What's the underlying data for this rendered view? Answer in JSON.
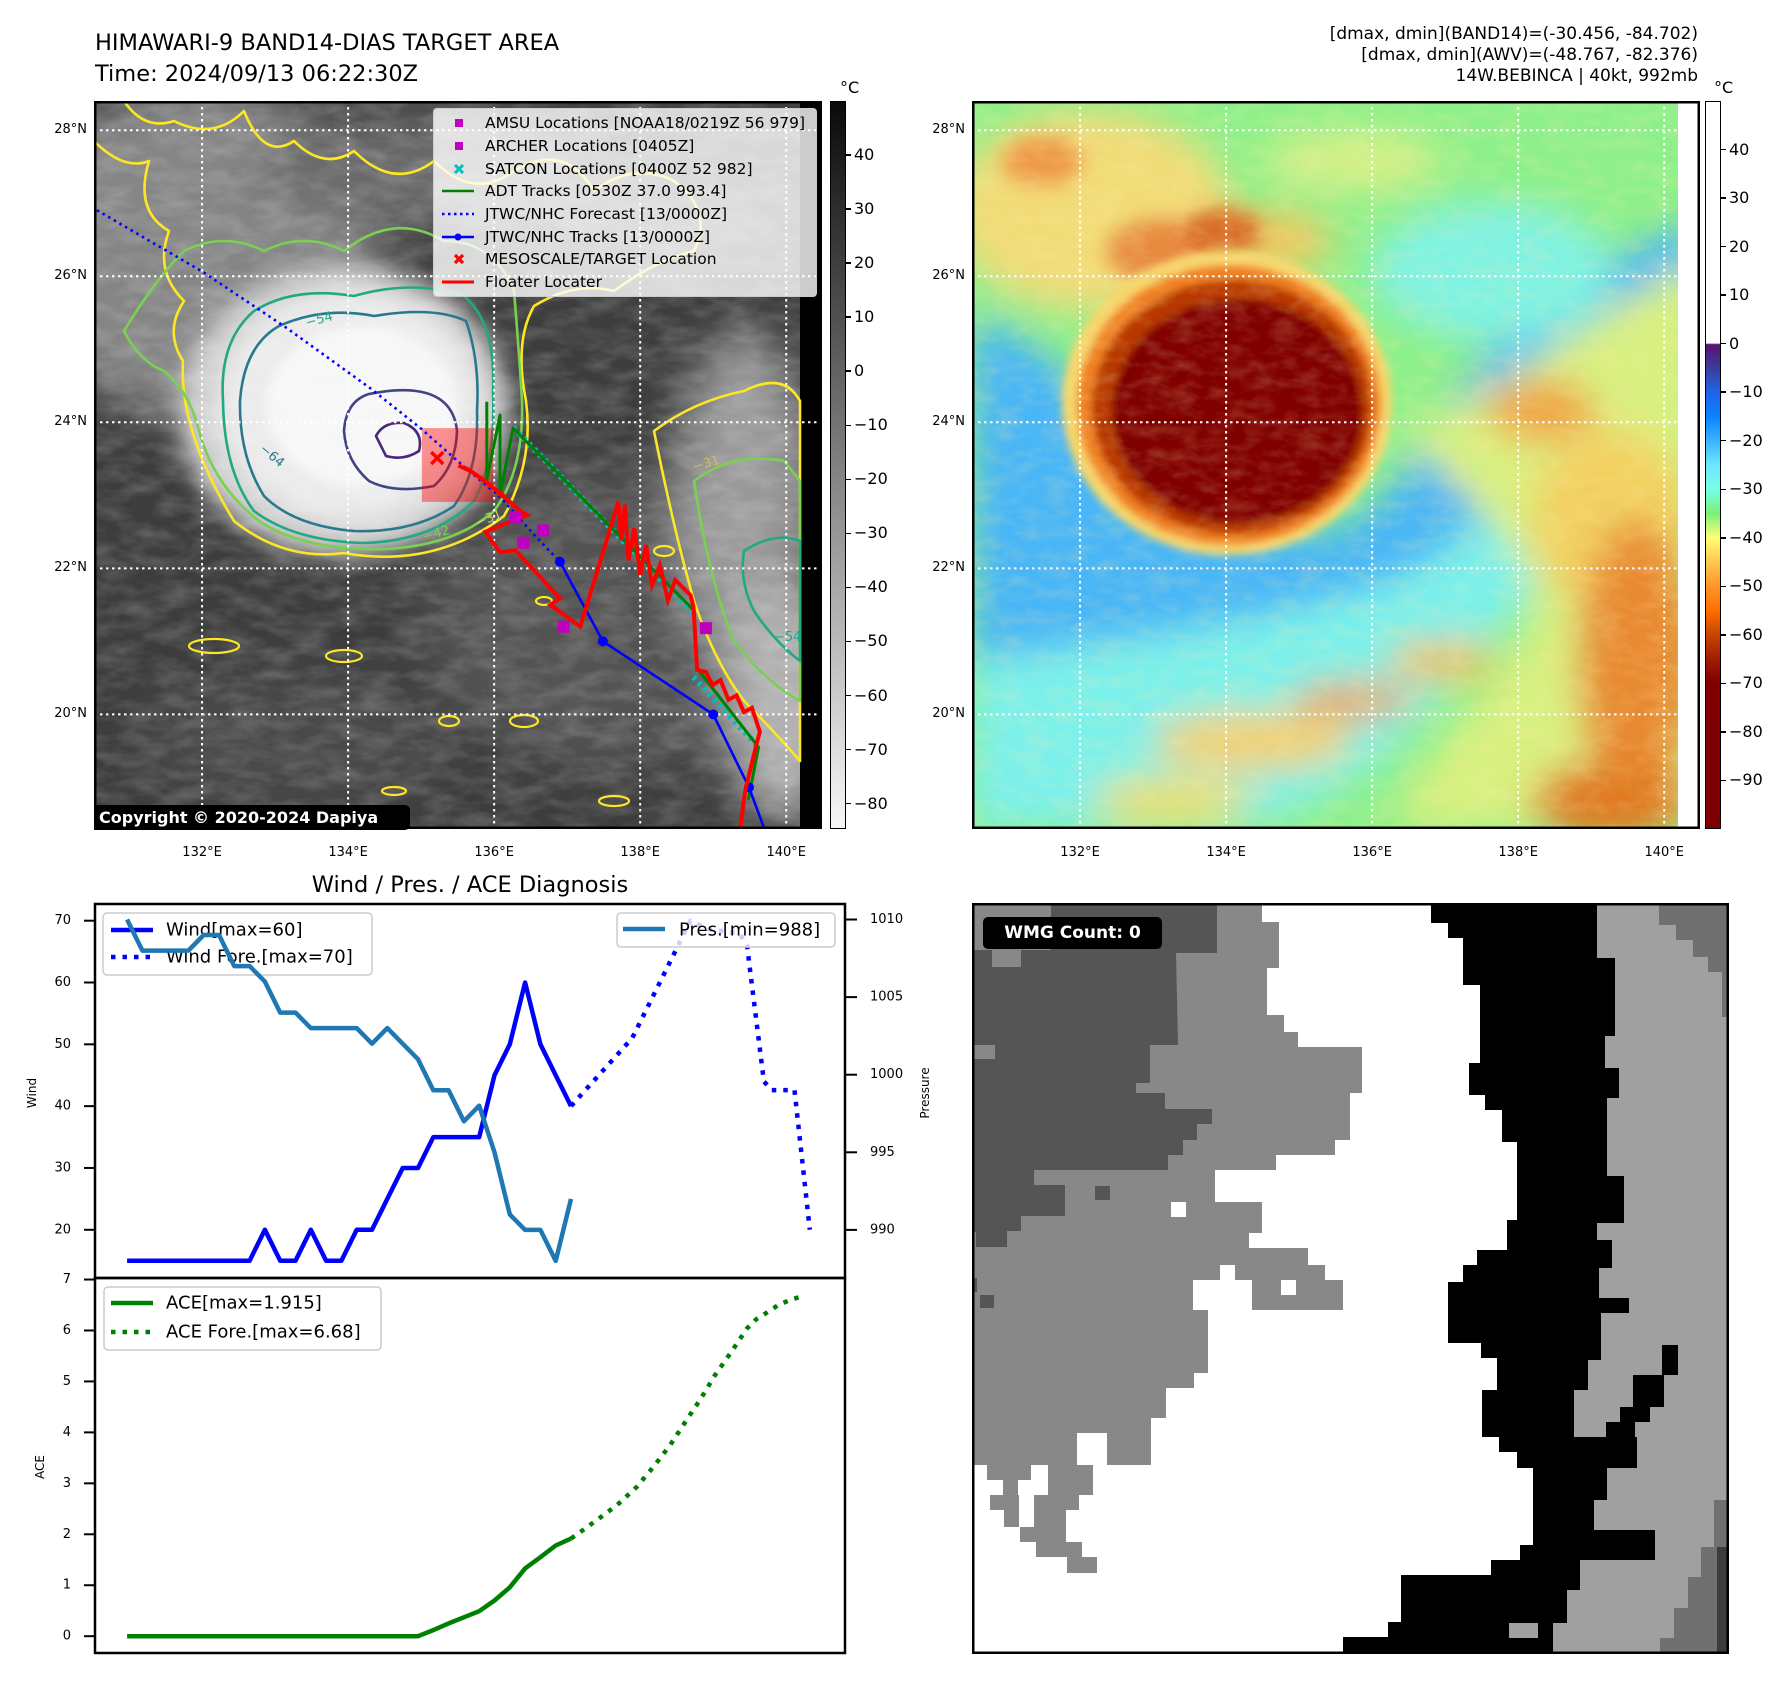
{
  "header": {
    "title": "HIMAWARI-9 BAND14-DIAS TARGET AREA",
    "time": "Time: 2024/09/13 06:22:30Z",
    "stats": [
      "[dmax, dmin](BAND14)=(-30.456, -84.702)",
      "[dmax, dmin](AWV)=(-48.767, -82.376)",
      "14W.BEBINCA | 40kt, 992mb"
    ]
  },
  "map_axes": {
    "lon_range": [
      130.52,
      140.49
    ],
    "lat_range": [
      18.43,
      28.4
    ],
    "lon_ticks": [
      {
        "value": 132,
        "label": "132°E"
      },
      {
        "value": 134,
        "label": "134°E"
      },
      {
        "value": 136,
        "label": "136°E"
      },
      {
        "value": 138,
        "label": "138°E"
      },
      {
        "value": 140,
        "label": "140°E"
      }
    ],
    "lat_ticks": [
      {
        "value": 28,
        "label": "28°N"
      },
      {
        "value": 26,
        "label": "26°N"
      },
      {
        "value": 24,
        "label": "24°N"
      },
      {
        "value": 22,
        "label": "22°N"
      },
      {
        "value": 20,
        "label": "20°N"
      }
    ]
  },
  "ir_map": {
    "colorbar": {
      "unit": "°C",
      "colormap": "gray_r",
      "range": [
        -84.7,
        50
      ],
      "ticks": [
        40,
        30,
        20,
        10,
        0,
        -10,
        -20,
        -30,
        -40,
        -50,
        -60,
        -70,
        -80
      ]
    },
    "legend": [
      {
        "label": "AMSU Locations [NOAA18/0219Z 56 979]",
        "marker": "square",
        "color": "#bf00bf"
      },
      {
        "label": "ARCHER Locations [0405Z]",
        "marker": "square",
        "color": "#bf00bf"
      },
      {
        "label": "SATCON Locations [0400Z 52 982]",
        "marker": "x",
        "color": "#00bfbf"
      },
      {
        "label": "ADT Tracks [0530Z 37.0 993.4]",
        "marker": "line",
        "color": "#008000"
      },
      {
        "label": "JTWC/NHC Forecast [13/0000Z]",
        "marker": "dotted-line",
        "color": "#0000ff"
      },
      {
        "label": "JTWC/NHC Tracks [13/0000Z]",
        "marker": "line-dot",
        "color": "#0000ff"
      },
      {
        "label": "MESOSCALE/TARGET Location",
        "marker": "x",
        "color": "#ff0000"
      },
      {
        "label": "Floater Locater",
        "marker": "line",
        "color": "#ff0000"
      }
    ],
    "contour_labels": [
      "−31",
      "−42",
      "−54",
      "−64"
    ],
    "contour_colors": [
      "#fde725",
      "#7ad151",
      "#22a884",
      "#2a788e",
      "#414487",
      "#482878"
    ],
    "overlays": {
      "jtwc_forecast": [
        [
          130.4,
          26.98
        ],
        [
          130.55,
          26.91
        ],
        [
          132.01,
          26.06
        ],
        [
          133.16,
          25.29
        ],
        [
          134.3,
          24.47
        ],
        [
          134.99,
          23.92
        ],
        [
          135.51,
          23.46
        ],
        [
          136.08,
          22.98
        ],
        [
          136.53,
          22.48
        ],
        [
          136.9,
          22.09
        ]
      ],
      "jtwc_track": [
        [
          136.9,
          22.09
        ],
        [
          137.49,
          21.0
        ],
        [
          139.0,
          20.0
        ],
        [
          139.49,
          19.0
        ],
        [
          139.81,
          18.14
        ]
      ],
      "adt_track": [
        [
          135.9,
          24.28
        ],
        [
          135.9,
          23.21
        ],
        [
          136.08,
          24.1
        ],
        [
          136.08,
          23.0
        ],
        [
          136.26,
          23.92
        ],
        [
          137.73,
          22.43
        ],
        [
          138.73,
          21.43
        ],
        [
          138.78,
          20.63
        ],
        [
          139.62,
          19.55
        ],
        [
          139.48,
          18.83
        ]
      ],
      "satcon_track": [
        [
          [
            136.26,
            23.93
          ],
          [
            138.73,
            21.38
          ]
        ],
        [
          [
            138.73,
            20.51
          ],
          [
            139.62,
            19.55
          ]
        ]
      ],
      "floater_track": [
        [
          135.51,
          23.41
        ],
        [
          135.7,
          23.32
        ],
        [
          135.62,
          23.37
        ],
        [
          135.86,
          23.21
        ],
        [
          135.78,
          23.26
        ],
        [
          136.0,
          23.1
        ],
        [
          135.92,
          23.15
        ],
        [
          136.14,
          22.99
        ],
        [
          136.05,
          23.04
        ],
        [
          136.27,
          22.87
        ],
        [
          136.19,
          22.92
        ],
        [
          136.38,
          22.77
        ],
        [
          136.45,
          22.73
        ],
        [
          135.88,
          22.5
        ],
        [
          136.08,
          22.22
        ],
        [
          136.29,
          22.25
        ],
        [
          136.9,
          21.59
        ],
        [
          136.77,
          21.5
        ],
        [
          137.18,
          21.2
        ],
        [
          137.7,
          22.91
        ],
        [
          137.74,
          22.39
        ],
        [
          137.79,
          22.87
        ],
        [
          137.84,
          22.11
        ],
        [
          137.92,
          22.55
        ],
        [
          138.0,
          21.91
        ],
        [
          138.08,
          22.32
        ],
        [
          138.16,
          21.77
        ],
        [
          138.27,
          22.04
        ],
        [
          138.38,
          21.56
        ],
        [
          138.48,
          21.84
        ],
        [
          138.69,
          21.63
        ],
        [
          138.73,
          21.47
        ],
        [
          138.78,
          20.61
        ],
        [
          138.9,
          20.58
        ],
        [
          138.99,
          20.4
        ],
        [
          139.1,
          20.47
        ],
        [
          139.21,
          20.2
        ],
        [
          139.32,
          20.26
        ],
        [
          139.42,
          20.03
        ],
        [
          139.53,
          20.09
        ],
        [
          139.64,
          19.76
        ],
        [
          139.6,
          19.62
        ],
        [
          139.44,
          18.96
        ],
        [
          139.37,
          18.44
        ]
      ],
      "amsu_archer_points": [
        [
          136.29,
          22.7
        ],
        [
          136.67,
          22.52
        ],
        [
          136.4,
          22.35
        ],
        [
          136.95,
          21.2
        ],
        [
          138.9,
          21.18
        ]
      ],
      "target": [
        135.22,
        23.51
      ],
      "target_box": [
        [
          135.01,
          22.91
        ],
        [
          135.99,
          23.92
        ]
      ]
    },
    "copyright": "Copyright © 2020-2024 Dapiya"
  },
  "awv_map": {
    "colorbar": {
      "unit": "°C",
      "range": [
        -100,
        50
      ],
      "ticks": [
        40,
        30,
        20,
        10,
        0,
        -10,
        -20,
        -30,
        -40,
        -50,
        -60,
        -70,
        -80,
        -90
      ]
    }
  },
  "chart_data": [
    {
      "type": "line",
      "title": "Wind / Pres. / ACE Diagnosis",
      "xlabel": "",
      "ylabel": "Wind",
      "y2label": "Pressure",
      "xlim": [
        -2.1,
        46.9
      ],
      "ylim": [
        12.2,
        72.7
      ],
      "y2lim": [
        986.9,
        1011.0
      ],
      "yticks": [
        20,
        30,
        40,
        50,
        60,
        70
      ],
      "y2ticks": [
        990,
        995,
        1000,
        1005,
        1010
      ],
      "grid": false,
      "legend": [
        "top-left",
        "top-right"
      ],
      "series": [
        {
          "name": "Wind[max=60]",
          "axis": "left",
          "style": "solid",
          "color": "#0000ff",
          "x": [
            0,
            1,
            2,
            3,
            4,
            5,
            6,
            7,
            8,
            9,
            10,
            11,
            12,
            13,
            14,
            15,
            16,
            17,
            18,
            19,
            20,
            21,
            22,
            23,
            24,
            25,
            26,
            27,
            28,
            29
          ],
          "values": [
            15,
            15,
            15,
            15,
            15,
            15,
            15,
            15,
            15,
            20,
            15,
            15,
            20,
            15,
            15,
            20,
            20,
            25,
            30,
            30,
            35,
            35,
            35,
            35,
            45,
            50,
            60,
            50,
            45,
            40
          ]
        },
        {
          "name": "Wind Fore.[max=70]",
          "axis": "left",
          "style": "dotted",
          "color": "#0000ff",
          "x": [
            29,
            33,
            35,
            36.8,
            38,
            40,
            40.5,
            41.6,
            42.1,
            43.6,
            44.6
          ],
          "values": [
            40,
            51,
            61,
            70,
            68.6,
            68,
            66,
            44,
            42.6,
            42.6,
            20
          ]
        },
        {
          "name": "Pres.[min=988]",
          "axis": "right",
          "style": "solid",
          "color": "#1f77b4",
          "x": [
            0,
            1,
            2,
            3,
            4,
            5,
            6,
            7,
            8,
            9,
            10,
            11,
            12,
            13,
            14,
            15,
            16,
            17,
            18,
            19,
            20,
            21,
            22,
            23,
            24,
            25,
            26,
            27,
            28,
            29
          ],
          "values": [
            1010,
            1008,
            1008,
            1008,
            1008,
            1009,
            1009,
            1007,
            1007,
            1006,
            1004,
            1004,
            1003,
            1003,
            1003,
            1003,
            1002,
            1003,
            1002,
            1001,
            999,
            999,
            997,
            998,
            995,
            991,
            990,
            990,
            988,
            992
          ]
        }
      ]
    },
    {
      "type": "line",
      "title": "",
      "xlabel": "",
      "ylabel": "ACE",
      "xlim": [
        -2.1,
        46.9
      ],
      "ylim": [
        -0.33,
        7.03
      ],
      "yticks": [
        0,
        1,
        2,
        3,
        4,
        5,
        6,
        7
      ],
      "grid": false,
      "legend": "top-left",
      "series": [
        {
          "name": "ACE[max=1.915]",
          "style": "solid",
          "color": "#008000",
          "x": [
            0,
            1,
            2,
            3,
            4,
            5,
            6,
            7,
            8,
            9,
            10,
            11,
            12,
            13,
            14,
            15,
            16,
            17,
            18,
            19,
            20,
            21,
            22,
            23,
            24,
            25,
            26,
            27,
            28,
            29
          ],
          "values": [
            0,
            0,
            0,
            0,
            0,
            0,
            0,
            0,
            0,
            0,
            0,
            0,
            0,
            0,
            0,
            0,
            0,
            0,
            0,
            0,
            0.12,
            0.25,
            0.37,
            0.49,
            0.7,
            0.96,
            1.33,
            1.55,
            1.78,
            1.915
          ]
        },
        {
          "name": "ACE Fore.[max=6.68]",
          "style": "dotted",
          "color": "#008000",
          "x": [
            29,
            30.5,
            32,
            33.3,
            34.4,
            35.5,
            36.5,
            37.5,
            38.4,
            39.5,
            40.5,
            41.1,
            41.9,
            42.6,
            43.5,
            44.3
          ],
          "values": [
            1.915,
            2.24,
            2.57,
            2.93,
            3.33,
            3.76,
            4.22,
            4.67,
            5.12,
            5.59,
            6.04,
            6.22,
            6.37,
            6.51,
            6.62,
            6.68
          ]
        }
      ]
    }
  ],
  "wmg": {
    "label": "WMG Count: 0",
    "count": 0
  }
}
